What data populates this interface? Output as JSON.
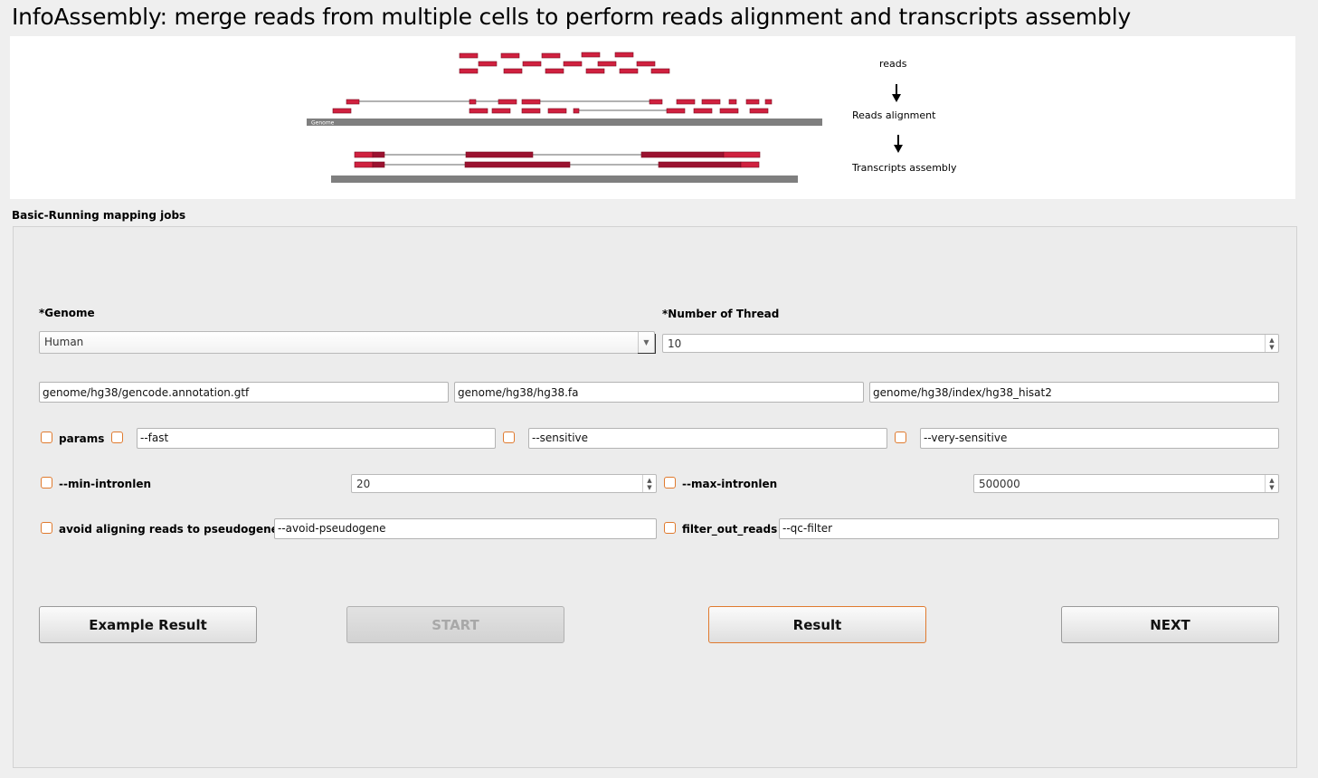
{
  "title": "InfoAssembly: merge reads from multiple cells to perform reads alignment and transcripts assembly",
  "diagram": {
    "step1": "reads",
    "step2": "Reads alignment",
    "step3": "Transcripts assembly",
    "genome_label": "Genome"
  },
  "section_title": "Basic-Running mapping jobs",
  "genome": {
    "label": "*Genome",
    "value": "Human"
  },
  "threads": {
    "label": "*Number of Thread",
    "value": "10"
  },
  "paths": {
    "gtf": "genome/hg38/gencode.annotation.gtf",
    "fasta": "genome/hg38/hg38.fa",
    "index": "genome/hg38/index/hg38_hisat2"
  },
  "params": {
    "label": "params",
    "fast": "--fast",
    "sensitive": "--sensitive",
    "very_sensitive": "--very-sensitive"
  },
  "min_intronlen": {
    "label": "--min-intronlen",
    "value": "20"
  },
  "max_intronlen": {
    "label": "--max-intronlen",
    "value": "500000"
  },
  "pseudogene": {
    "label": "avoid aligning reads to pseudogenes",
    "value": "--avoid-pseudogene"
  },
  "filter": {
    "label": "filter_out_reads",
    "value": "--qc-filter"
  },
  "buttons": {
    "example": "Example Result",
    "start": "START",
    "result": "Result",
    "next": "NEXT"
  },
  "colors": {
    "read": "#d0213f",
    "read_dark": "#9b1230",
    "genome_bar": "#7f7f7f",
    "checkbox": "#e07a2e"
  }
}
